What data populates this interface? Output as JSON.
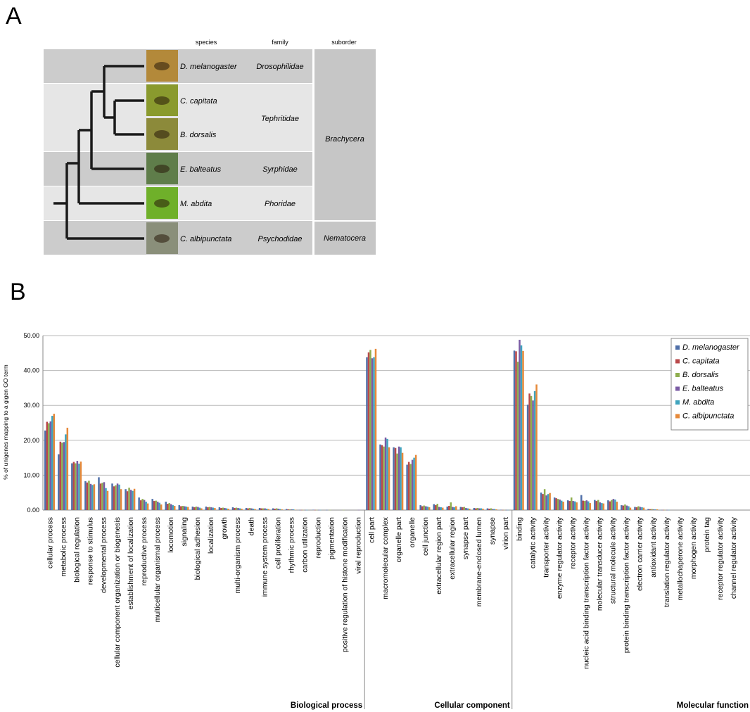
{
  "panel_a": {
    "letter": "A",
    "headers": {
      "species": "species",
      "family": "family",
      "suborder": "suborder"
    },
    "species": [
      {
        "name": "D. melanogaster",
        "family": "Drosophilidae",
        "photo_color": "#b3893a"
      },
      {
        "name": "C. capitata",
        "family": "",
        "photo_color": "#8a9a2e"
      },
      {
        "name": "B. dorsalis",
        "family": "",
        "photo_color": "#8c8a3a"
      },
      {
        "name": "E. balteatus",
        "family": "Syrphidae",
        "photo_color": "#5f7d4a"
      },
      {
        "name": "M. abdita",
        "family": "Phoridae",
        "photo_color": "#6fb02a"
      },
      {
        "name": "C. albipunctata",
        "family": "Psychodidae",
        "photo_color": "#8a8f7a"
      }
    ],
    "tephritidae_label": "Tephritidae",
    "suborders": {
      "brachycera": "Brachycera",
      "nematocera": "Nematocera"
    },
    "colors": {
      "band_dark": "#cccccc",
      "band_light": "#e6e6e6",
      "suborder": "#c6c6c6",
      "tree": "#1a1a1a"
    }
  },
  "panel_b": {
    "letter": "B",
    "sections": [
      "Biological process",
      "Cellular component",
      "Molecular function"
    ]
  },
  "chart_data": {
    "type": "bar",
    "ylabel": "% of unigenes mapping to a gigen GO term",
    "ylim": [
      0,
      50
    ],
    "yticks": [
      "0.00",
      "10.00",
      "20.00",
      "30.00",
      "40.00",
      "50.00"
    ],
    "grid": true,
    "legend_position": "top-right",
    "series": [
      {
        "name": "D. melanogaster",
        "color": "#4f6fa8"
      },
      {
        "name": "C. capitata",
        "color": "#b9484a"
      },
      {
        "name": "B. dorsalis",
        "color": "#8fae4f"
      },
      {
        "name": "E. balteatus",
        "color": "#7a5ba4"
      },
      {
        "name": "M. abdita",
        "color": "#3fa4be"
      },
      {
        "name": "C. albipunctata",
        "color": "#e6893a"
      }
    ],
    "categories": [
      "cellular process",
      "metabolic process",
      "biological regulation",
      "response to stimulus",
      "developmental process",
      "cellular component organization or biogenesis",
      "establishment of localization",
      "reproductive process",
      "multicellular organismal process",
      "locomotion",
      "signaling",
      "biological adhesion",
      "localization",
      "growth",
      "multi-organism process",
      "death",
      "immune system process",
      "cell proliferation",
      "rhythmic process",
      "carbon utilization",
      "reproduction",
      "pigmentation",
      "positive regulation of histone modification",
      "viral reproduction",
      "cell part",
      "macromolecular complex",
      "organelle part",
      "organelle",
      "cell junction",
      "extracellular region part",
      "extracellular region",
      "synapse part",
      "membrane-enclosed lumen",
      "synapse",
      "virion part",
      "binding",
      "catalytic activity",
      "transporter activity",
      "enzyme regulator activity",
      "receptor activity",
      "nucleic acid binding transcription factor activity",
      "molecular transducer activity",
      "structural molecule activity",
      "protein binding transcription factor activity",
      "electron carrier activity",
      "antioxidant activity",
      "translation regulator activity",
      "metallochaperone activity",
      "morphogen activity",
      "protein tag",
      "receptor regulator activity",
      "channel regulator activity"
    ],
    "section_sizes": [
      24,
      11,
      17
    ],
    "values": [
      [
        22.8,
        25.3,
        24.9,
        25.4,
        27.0,
        27.6
      ],
      [
        16.0,
        19.6,
        19.3,
        19.5,
        21.7,
        23.6
      ],
      [
        13.4,
        13.8,
        13.4,
        14.1,
        13.3,
        13.9
      ],
      [
        8.3,
        7.9,
        8.4,
        7.5,
        7.2,
        7.4
      ],
      [
        9.4,
        7.6,
        7.8,
        8.0,
        6.3,
        5.5
      ],
      [
        7.6,
        6.8,
        7.1,
        7.6,
        7.3,
        6.0
      ],
      [
        6.0,
        5.4,
        6.4,
        5.8,
        5.5,
        6.1
      ],
      [
        3.6,
        2.8,
        3.2,
        2.9,
        2.4,
        1.9
      ],
      [
        3.2,
        2.6,
        2.7,
        2.4,
        2.1,
        1.6
      ],
      [
        2.4,
        1.8,
        2.0,
        1.7,
        1.4,
        1.2
      ],
      [
        1.4,
        1.1,
        1.2,
        1.1,
        1.0,
        0.9
      ],
      [
        1.0,
        0.8,
        1.0,
        0.9,
        0.7,
        0.5
      ],
      [
        1.0,
        0.8,
        0.9,
        0.8,
        0.7,
        0.6
      ],
      [
        0.8,
        0.6,
        0.7,
        0.6,
        0.5,
        0.4
      ],
      [
        0.8,
        0.6,
        0.7,
        0.6,
        0.5,
        0.4
      ],
      [
        0.6,
        0.5,
        0.6,
        0.5,
        0.4,
        0.3
      ],
      [
        0.6,
        0.5,
        0.5,
        0.5,
        0.4,
        0.3
      ],
      [
        0.5,
        0.4,
        0.5,
        0.4,
        0.3,
        0.2
      ],
      [
        0.3,
        0.2,
        0.2,
        0.2,
        0.2,
        0.1
      ],
      [
        0.05,
        0.05,
        0.05,
        0.05,
        0.05,
        0.0
      ],
      [
        0.1,
        0.05,
        0.05,
        0.05,
        0.05,
        0.0
      ],
      [
        0.05,
        0.0,
        0.05,
        0.0,
        0.0,
        0.0
      ],
      [
        0.0,
        0.0,
        0.05,
        0.0,
        0.0,
        0.0
      ],
      [
        0.0,
        0.0,
        0.0,
        0.05,
        0.0,
        0.0
      ],
      [
        43.8,
        45.2,
        45.9,
        43.5,
        43.8,
        46.2
      ],
      [
        18.8,
        18.6,
        18.2,
        20.8,
        20.4,
        18.0
      ],
      [
        18.0,
        17.8,
        16.2,
        18.2,
        18.0,
        16.4
      ],
      [
        13.0,
        13.8,
        13.2,
        14.4,
        15.0,
        15.8
      ],
      [
        1.4,
        1.1,
        1.3,
        1.1,
        1.0,
        0.8
      ],
      [
        1.7,
        1.4,
        1.8,
        0.9,
        0.8,
        0.7
      ],
      [
        1.0,
        1.2,
        2.2,
        0.9,
        0.8,
        1.1
      ],
      [
        0.9,
        0.8,
        0.9,
        0.6,
        0.5,
        0.4
      ],
      [
        0.6,
        0.5,
        0.6,
        0.5,
        0.5,
        0.4
      ],
      [
        0.5,
        0.4,
        0.5,
        0.3,
        0.3,
        0.2
      ],
      [
        0.1,
        0.05,
        0.05,
        0.05,
        0.05,
        0.0
      ],
      [
        45.7,
        45.5,
        42.5,
        48.8,
        47.2,
        45.6
      ],
      [
        30.2,
        33.4,
        32.7,
        31.4,
        34.1,
        36.0
      ],
      [
        5.0,
        4.6,
        6.0,
        4.2,
        4.6,
        4.9
      ],
      [
        3.6,
        3.4,
        3.2,
        3.0,
        2.7,
        2.4
      ],
      [
        2.8,
        2.6,
        3.6,
        2.6,
        2.5,
        2.2
      ],
      [
        4.3,
        2.7,
        2.6,
        2.8,
        2.5,
        2.0
      ],
      [
        2.9,
        2.6,
        2.9,
        2.2,
        2.0,
        1.9
      ],
      [
        2.8,
        2.5,
        2.9,
        3.2,
        3.0,
        2.4
      ],
      [
        1.4,
        1.3,
        1.6,
        1.3,
        1.1,
        0.7
      ],
      [
        0.9,
        0.8,
        1.1,
        0.9,
        0.8,
        0.7
      ],
      [
        0.3,
        0.25,
        0.3,
        0.2,
        0.2,
        0.2
      ],
      [
        0.05,
        0.05,
        0.05,
        0.05,
        0.05,
        0.0
      ],
      [
        0.0,
        0.0,
        0.0,
        0.0,
        0.0,
        0.0
      ],
      [
        0.0,
        0.0,
        0.0,
        0.0,
        0.0,
        0.0
      ],
      [
        0.0,
        0.0,
        0.0,
        0.0,
        0.0,
        0.0
      ],
      [
        0.0,
        0.0,
        0.0,
        0.0,
        0.0,
        0.0
      ],
      [
        0.0,
        0.0,
        0.0,
        0.0,
        0.0,
        0.0
      ]
    ]
  }
}
